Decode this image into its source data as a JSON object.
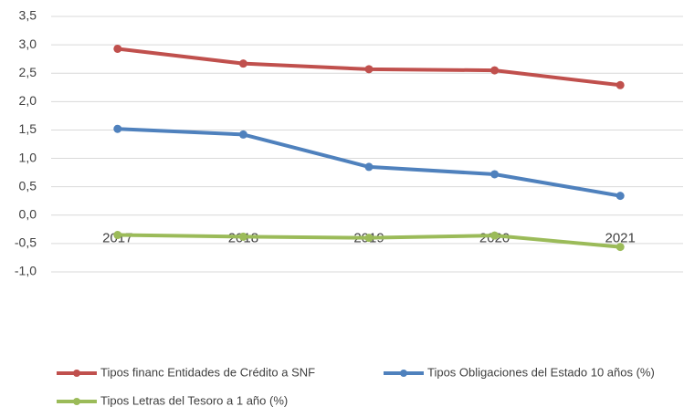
{
  "chart_data": {
    "type": "line",
    "categories": [
      "2017",
      "2018",
      "2019",
      "2020",
      "2021"
    ],
    "series": [
      {
        "name": "Tipos financ Entidades de Crédito a SNF",
        "color": "#c0504d",
        "values": [
          2.93,
          2.67,
          2.57,
          2.55,
          2.29
        ]
      },
      {
        "name": "Tipos Obligaciones del Estado 10 años (%)",
        "color": "#4f81bd",
        "values": [
          1.52,
          1.42,
          0.85,
          0.72,
          0.34
        ]
      },
      {
        "name": "Tipos Letras del Tesoro a 1 año  (%)",
        "color": "#9bbb59",
        "values": [
          -0.35,
          -0.38,
          -0.4,
          -0.36,
          -0.56
        ]
      }
    ],
    "ylim": [
      -1.0,
      3.5
    ],
    "yticks": [
      {
        "value": -1.0,
        "label": "-1,0"
      },
      {
        "value": -0.5,
        "label": "-0,5"
      },
      {
        "value": 0,
        "label": "0,0"
      },
      {
        "value": 0.5,
        "label": "0,5"
      },
      {
        "value": 1.0,
        "label": "1,0"
      },
      {
        "value": 1.5,
        "label": "1,5"
      },
      {
        "value": 2.0,
        "label": "2,0"
      },
      {
        "value": 2.5,
        "label": "2,5"
      },
      {
        "value": 3.0,
        "label": "3,0"
      },
      {
        "value": 3.5,
        "label": "3,5"
      }
    ],
    "grid": true
  }
}
